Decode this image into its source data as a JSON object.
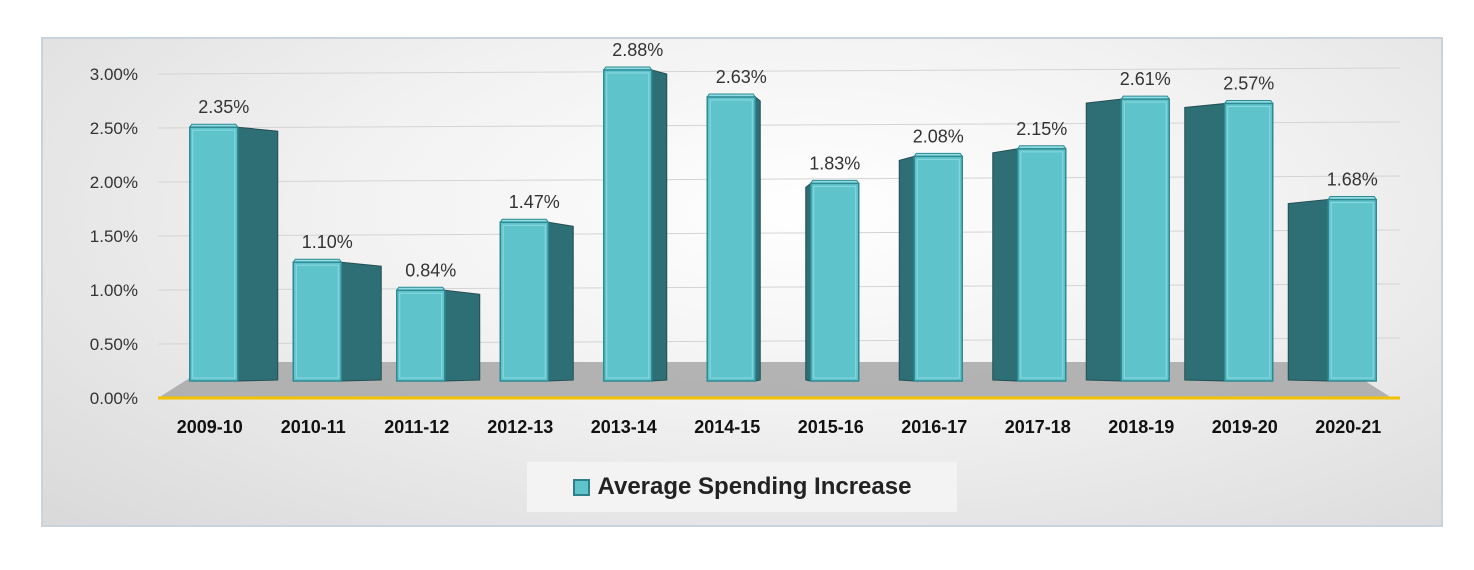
{
  "chart_data": {
    "type": "bar",
    "categories": [
      "2009-10",
      "2010-11",
      "2011-12",
      "2012-13",
      "2013-14",
      "2014-15",
      "2015-16",
      "2016-17",
      "2017-18",
      "2018-19",
      "2019-20",
      "2020-21"
    ],
    "series": [
      {
        "name": "Average Spending Increase",
        "values": [
          2.35,
          1.1,
          0.84,
          1.47,
          2.88,
          2.63,
          1.83,
          2.08,
          2.15,
          2.61,
          2.57,
          1.68
        ],
        "labels": [
          "2.35%",
          "1.10%",
          "0.84%",
          "1.47%",
          "2.88%",
          "2.63%",
          "1.83%",
          "2.08%",
          "2.15%",
          "2.61%",
          "2.57%",
          "1.68%"
        ]
      }
    ],
    "yticks": [
      "0.00%",
      "0.50%",
      "1.00%",
      "1.50%",
      "2.00%",
      "2.50%",
      "3.00%"
    ],
    "ylim": [
      0,
      3.0
    ],
    "title": "",
    "xlabel": "",
    "ylabel": "",
    "legend": "bottom",
    "bar_style": "3d",
    "colors": {
      "bar_front": "#5fc3cb",
      "bar_side": "#2d6f75",
      "bar_edge": "#2f8a93",
      "floor": "#a7a7a7",
      "baseline": "#f2c200"
    }
  }
}
